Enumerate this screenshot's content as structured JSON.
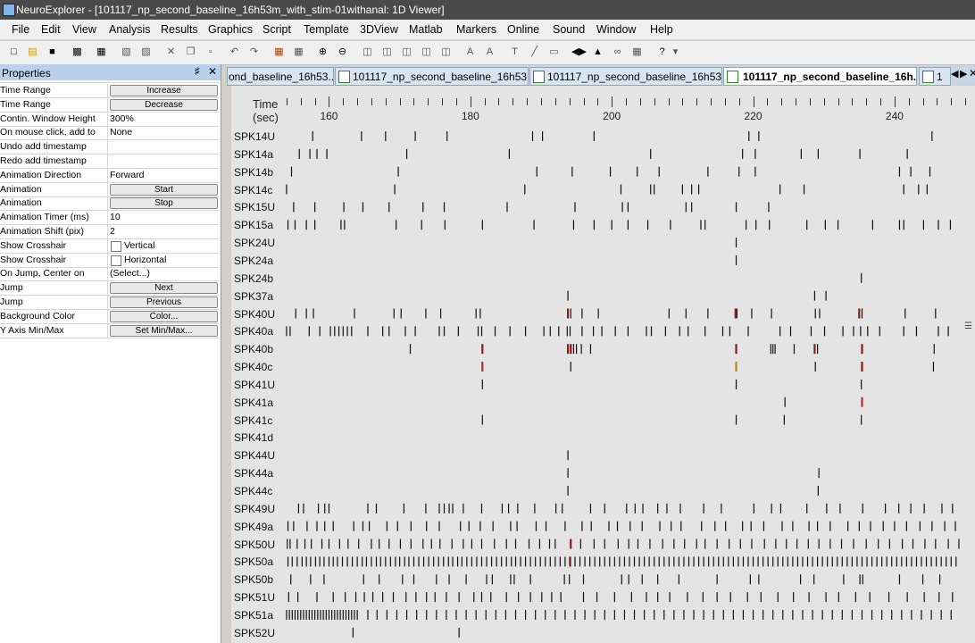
{
  "window": {
    "title": "NeuroExplorer - [101117_np_second_baseline_16h53m_with_stim-01withanal: 1D Viewer]"
  },
  "menu": [
    "File",
    "Edit",
    "View",
    "Analysis",
    "Results",
    "Graphics",
    "Script",
    "Template",
    "3DView",
    "Matlab",
    "Markers",
    "Online",
    "Sound",
    "Window",
    "Help"
  ],
  "properties": {
    "title": "Properties",
    "rows": [
      {
        "key": "Time Range",
        "kind": "button",
        "value": "Increase"
      },
      {
        "key": "Time Range",
        "kind": "button",
        "value": "Decrease"
      },
      {
        "key": "Contin. Window Height",
        "kind": "text",
        "value": "300%"
      },
      {
        "key": "On mouse click, add to",
        "kind": "text",
        "value": "None"
      },
      {
        "key": "Undo add timestamp",
        "kind": "text",
        "value": ""
      },
      {
        "key": "Redo add timestamp",
        "kind": "text",
        "value": ""
      },
      {
        "key": "Animation Direction",
        "kind": "text",
        "value": "Forward"
      },
      {
        "key": "Animation",
        "kind": "button",
        "value": "Start"
      },
      {
        "key": "Animation",
        "kind": "button",
        "value": "Stop"
      },
      {
        "key": "Animation Timer (ms)",
        "kind": "text",
        "value": "10"
      },
      {
        "key": "Animation Shift (pix)",
        "kind": "text",
        "value": "2"
      },
      {
        "key": "Show Crosshair",
        "kind": "check",
        "value": "Vertical"
      },
      {
        "key": "Show Crosshair",
        "kind": "check",
        "value": "Horizontal"
      },
      {
        "key": "On Jump, Center on",
        "kind": "text",
        "value": "(Select...)"
      },
      {
        "key": "Jump",
        "kind": "button",
        "value": "Next"
      },
      {
        "key": "Jump",
        "kind": "button",
        "value": "Previous"
      },
      {
        "key": "Background Color",
        "kind": "button",
        "value": "Color..."
      },
      {
        "key": "Y Axis Min/Max",
        "kind": "button",
        "value": "Set Min/Max..."
      }
    ]
  },
  "tabs": [
    {
      "label": "ond_baseline_16h53...",
      "active": false,
      "icon": false
    },
    {
      "label": "101117_np_second_baseline_16h53...",
      "active": false,
      "icon": true
    },
    {
      "label": "101117_np_second_baseline_16h53...",
      "active": false,
      "icon": true
    },
    {
      "label": "101117_np_second_baseline_16h...",
      "active": true,
      "icon": true
    },
    {
      "label": "1",
      "active": false,
      "icon": true
    }
  ],
  "axis": {
    "title_line1": "Time",
    "title_line2": "(sec)",
    "ticks": [
      160,
      180,
      200,
      220,
      240
    ],
    "range": [
      153.5,
      251
    ]
  },
  "channels": [
    "SPK14U",
    "SPK14a",
    "SPK14b",
    "SPK14c",
    "SPK15U",
    "SPK15a",
    "SPK24U",
    "SPK24a",
    "SPK24b",
    "SPK37a",
    "SPK40U",
    "SPK40a",
    "SPK40b",
    "SPK40c",
    "SPK41U",
    "SPK41a",
    "SPK41c",
    "SPK41d",
    "SPK44U",
    "SPK44a",
    "SPK44c",
    "SPK49U",
    "SPK49a",
    "SPK50U",
    "SPK50a",
    "SPK50b",
    "SPK51U",
    "SPK51a",
    "SPK52U"
  ],
  "spikes": {
    "SPK14U": [
      157.7,
      164.6,
      168.0,
      172.2,
      176.7,
      188.8,
      190.2,
      197.5,
      219.4,
      220.8,
      245.3
    ],
    "SPK14a": [
      155.8,
      157.3,
      158.3,
      159.7,
      171.0,
      185.5,
      205.5,
      218.5,
      220.3,
      226.8,
      229.2,
      235.1,
      241.8
    ],
    "SPK14b": [
      154.7,
      169.8,
      189.4,
      194.4,
      199.8,
      203.6,
      206.7,
      213.6,
      218.0,
      220.3,
      240.7,
      242.3,
      245.0
    ],
    "SPK14c": [
      154.0,
      169.3,
      187.7,
      201.3,
      205.5,
      206.0,
      210.0,
      211.3,
      212.3,
      223.8,
      227.2,
      241.3,
      243.4,
      244.6
    ],
    "SPK15U": [
      155.0,
      158.0,
      162.1,
      164.8,
      168.5,
      173.3,
      176.3,
      185.2,
      194.8,
      201.5,
      202.3,
      210.5,
      211.3,
      217.6,
      222.2
    ],
    "SPK15a": [
      154.2,
      155.2,
      156.8,
      158.0,
      161.7,
      162.2,
      169.5,
      173.1,
      176.4,
      181.7,
      189.0,
      194.6,
      197.5,
      200.0,
      202.3,
      205.1,
      208.3,
      212.6,
      213.2,
      219.0,
      220.4,
      222.3,
      227.6,
      230.2,
      232.0,
      236.9,
      240.7,
      241.3,
      244.1,
      246.2,
      247.9
    ],
    "SPK24U": [
      217.6
    ],
    "SPK24a": [
      217.6
    ],
    "SPK24b": [
      235.3
    ],
    "SPK37a": [
      193.8,
      228.7,
      230.3
    ],
    "SPK40U": [
      155.3,
      156.8,
      157.8,
      163.6,
      169.2,
      170.2,
      173.7,
      175.8,
      180.8,
      181.4,
      193.8,
      194.2,
      195.8,
      198.1,
      208.1,
      210.5,
      213.6,
      217.5,
      217.7,
      219.8,
      222.6,
      228.8,
      229.4,
      235.0,
      235.4,
      241.5,
      245.8
    ],
    "SPK40a": [
      154.0,
      154.5,
      157.2,
      158.7,
      160.2,
      160.8,
      161.4,
      162.0,
      162.6,
      163.2,
      165.5,
      167.6,
      168.5,
      170.8,
      172.2,
      175.6,
      176.3,
      178.3,
      181.1,
      181.6,
      183.5,
      185.6,
      187.8,
      190.4,
      191.3,
      192.5,
      193.7,
      194.1,
      195.8,
      197.4,
      198.6,
      200.5,
      202.3,
      204.9,
      205.6,
      207.6,
      209.6,
      210.8,
      213.2,
      215.7,
      216.7,
      219.3,
      223.8,
      225.3,
      228.2,
      230.1,
      232.7,
      234.2,
      235.2,
      236.2,
      237.9,
      241.3,
      243.1,
      246.2,
      247.6
    ],
    "SPK40b": [
      171.5,
      181.7,
      193.8,
      194.2,
      194.6,
      195.0,
      195.7,
      197.0,
      217.6,
      222.5,
      222.8,
      223.1,
      225.8,
      228.7,
      229.1,
      235.4,
      245.6
    ],
    "SPK40c": [
      181.7,
      194.2,
      217.6,
      228.8,
      235.4,
      245.5
    ],
    "SPK41U": [
      181.7,
      217.6,
      235.3
    ],
    "SPK41a": [
      224.5,
      235.4
    ],
    "SPK41c": [
      181.7,
      217.6,
      224.4,
      235.3
    ],
    "SPK44U": [
      193.8
    ],
    "SPK44a": [
      193.8,
      229.3
    ],
    "SPK44c": [
      193.8,
      229.2
    ],
    "SPK49U": [
      155.7,
      156.4,
      158.5,
      159.4,
      160.0,
      165.5,
      166.7,
      170.6,
      173.7,
      175.6,
      176.3,
      177.0,
      177.5,
      179.0,
      181.6,
      184.5,
      185.4,
      186.7,
      189.1,
      192.1,
      193.0,
      197.0,
      199.0,
      202.1,
      203.3,
      204.4,
      206.5,
      207.8,
      209.7,
      213.0,
      215.5,
      220.1,
      222.6,
      223.9,
      227.6,
      230.4,
      232.3,
      235.5,
      238.7,
      240.6,
      242.3,
      244.2,
      246.7,
      248.2
    ],
    "SPK49a": [
      154.2,
      155.0,
      156.9,
      158.3,
      159.4,
      160.6,
      163.5,
      164.8,
      165.7,
      168.2,
      169.7,
      171.6,
      173.8,
      175.6,
      178.6,
      179.8,
      181.4,
      183.2,
      185.7,
      186.6,
      189.3,
      190.7,
      193.4,
      195.8,
      197.1,
      199.6,
      200.8,
      202.6,
      204.3,
      206.8,
      208.4,
      209.8,
      212.7,
      214.6,
      216.1,
      218.5,
      219.7,
      221.5,
      224.1,
      225.6,
      227.9,
      229.1,
      230.9,
      233.4,
      235.0,
      236.6,
      238.4,
      240.0,
      241.7,
      243.6,
      245.3,
      247.1,
      248.6
    ],
    "SPK50U": [
      154.1,
      154.5,
      155.5,
      156.6,
      157.5,
      159.0,
      160.0,
      161.5,
      162.7,
      164.2,
      166.0,
      167.1,
      168.5,
      170.1,
      171.6,
      173.3,
      174.5,
      175.7,
      177.4,
      179.0,
      180.2,
      181.6,
      183.4,
      185.1,
      186.4,
      188.3,
      189.8,
      191.2,
      192.0,
      194.2,
      195.6,
      197.5,
      199.0,
      200.9,
      202.4,
      203.7,
      205.4,
      207.2,
      208.8,
      210.3,
      212.0,
      213.2,
      214.9,
      216.6,
      218.2,
      219.8,
      221.6,
      223.2,
      224.7,
      226.2,
      227.8,
      229.3,
      230.9,
      232.5,
      234.2,
      236.0,
      237.7,
      239.3,
      241.1,
      242.6,
      244.3,
      245.8,
      247.6,
      249.1
    ],
    "SPK50a": [
      154.2,
      154.8,
      155.5,
      156.2,
      156.8,
      157.4,
      158.1,
      158.7,
      159.3,
      160.0,
      160.6,
      161.2,
      161.9,
      162.6,
      163.3,
      164.0,
      164.7,
      165.3,
      166.0,
      166.7,
      167.3,
      168.0,
      168.7,
      169.4,
      170.0,
      170.7,
      171.3,
      172.0,
      172.7,
      173.4,
      174.1,
      174.8,
      175.5,
      176.2,
      176.9,
      177.5,
      178.2,
      178.8,
      179.5,
      180.2,
      180.9,
      181.6,
      182.3,
      183.0,
      183.7,
      184.4,
      185.1,
      185.8,
      186.4,
      187.1,
      187.8,
      188.5,
      189.2,
      189.9,
      190.6,
      191.3,
      192.0,
      192.7,
      193.4,
      194.1,
      194.8,
      195.5,
      196.2,
      196.9,
      197.6,
      198.3,
      199.0,
      199.7,
      200.4,
      201.1,
      201.8,
      202.5,
      203.2,
      203.9,
      204.6,
      205.3,
      206.0,
      206.7,
      207.4,
      208.1,
      208.8,
      209.5,
      210.2,
      210.9,
      211.6,
      212.3,
      213.0,
      213.7,
      214.4,
      215.1,
      215.8,
      216.5,
      217.2,
      217.9,
      218.6,
      219.3,
      220.0,
      220.7,
      221.4,
      222.1,
      222.8,
      223.5,
      224.2,
      224.9,
      225.6,
      226.3,
      227.0,
      227.7,
      228.4,
      229.1,
      229.8,
      230.5,
      231.2,
      231.9,
      232.6,
      233.3,
      234.0,
      234.7,
      235.4,
      236.1,
      236.8,
      237.5,
      238.2,
      238.9,
      239.6,
      240.3,
      241.0,
      241.7,
      242.4,
      243.1,
      243.8,
      244.5,
      245.2,
      245.9,
      246.6,
      247.3,
      248.0,
      248.7
    ],
    "SPK50b": [
      154.6,
      157.4,
      159.3,
      164.9,
      167.1,
      170.4,
      172.0,
      175.2,
      177.0,
      179.4,
      182.3,
      183.1,
      185.7,
      186.2,
      188.5,
      193.3,
      194.0,
      196.0,
      201.4,
      202.4,
      204.3,
      206.5,
      209.5,
      214.9,
      219.6,
      220.8,
      226.7,
      228.6,
      232.8,
      235.1,
      235.5,
      240.7,
      244.0,
      246.4
    ],
    "SPK51U": [
      154.3,
      155.6,
      158.3,
      160.6,
      162.3,
      163.8,
      165.0,
      166.2,
      167.6,
      169.1,
      170.9,
      172.3,
      173.8,
      175.0,
      176.6,
      178.4,
      180.5,
      181.6,
      182.9,
      185.1,
      186.8,
      188.5,
      190.1,
      191.5,
      192.8,
      196.0,
      197.9,
      200.4,
      202.8,
      204.9,
      206.5,
      208.2,
      210.7,
      212.9,
      214.9,
      216.8,
      219.2,
      221.1,
      223.5,
      225.7,
      227.9,
      230.3,
      232.1,
      234.5,
      236.5,
      239.2,
      241.8,
      244.2,
      246.3,
      248.2
    ],
    "SPK51a": [
      154.0,
      154.4,
      154.8,
      155.2,
      155.6,
      156.0,
      156.4,
      156.8,
      157.2,
      157.6,
      158.0,
      158.4,
      158.8,
      159.2,
      159.6,
      160.0,
      160.4,
      160.8,
      161.2,
      161.6,
      162.0,
      162.4,
      162.8,
      163.2,
      163.6,
      164.0,
      165.5,
      166.8,
      168.2,
      169.6,
      171.0,
      172.4,
      173.8,
      175.2,
      176.6,
      178.0,
      179.4,
      180.8,
      182.2,
      183.6,
      185.0,
      186.4,
      187.8,
      189.2,
      190.6,
      192.0,
      193.4,
      194.8,
      196.2,
      197.6,
      199.0,
      200.4,
      201.8,
      203.2,
      204.6,
      206.0,
      207.4,
      208.8,
      210.2,
      211.6,
      213.0,
      214.4,
      215.8,
      217.2,
      218.6,
      220.0,
      221.4,
      222.8,
      224.2,
      225.6,
      227.0,
      228.4,
      229.8,
      231.2,
      232.6,
      234.0,
      235.4,
      236.8,
      238.2,
      239.6,
      241.0,
      242.4,
      243.8,
      245.2,
      246.6,
      248.0
    ],
    "SPK52U": [
      163.4,
      178.4
    ]
  },
  "highlights": [
    {
      "ch": "SPK40U",
      "t": 193.8,
      "color": "#8b1a1a"
    },
    {
      "ch": "SPK40U",
      "t": 217.5,
      "color": "#8b1a1a"
    },
    {
      "ch": "SPK40U",
      "t": 235.0,
      "color": "#8b1a1a"
    },
    {
      "ch": "SPK40b",
      "t": 181.7,
      "color": "#8b1a1a"
    },
    {
      "ch": "SPK40b",
      "t": 193.8,
      "color": "#8b1a1a"
    },
    {
      "ch": "SPK40b",
      "t": 194.2,
      "color": "#8b1a1a"
    },
    {
      "ch": "SPK40b",
      "t": 217.6,
      "color": "#8b1a1a"
    },
    {
      "ch": "SPK40b",
      "t": 228.7,
      "color": "#8b1a1a"
    },
    {
      "ch": "SPK40b",
      "t": 235.4,
      "color": "#8b1a1a"
    },
    {
      "ch": "SPK40c",
      "t": 181.7,
      "color": "#b03030"
    },
    {
      "ch": "SPK40c",
      "t": 217.6,
      "color": "#b88a00"
    },
    {
      "ch": "SPK40c",
      "t": 235.4,
      "color": "#8b1a1a"
    },
    {
      "ch": "SPK41a",
      "t": 235.4,
      "color": "#b03030"
    },
    {
      "ch": "SPK50U",
      "t": 194.2,
      "color": "#8b1a1a"
    },
    {
      "ch": "SPK50a",
      "t": 194.1,
      "color": "#6b1515"
    }
  ]
}
